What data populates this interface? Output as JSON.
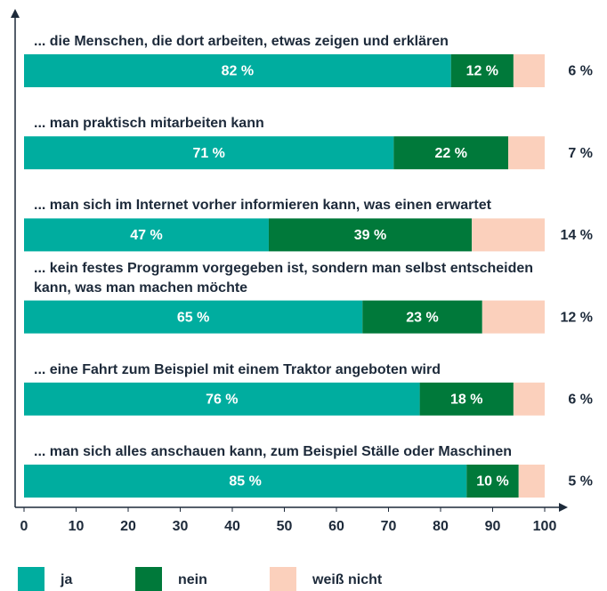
{
  "chart_data": {
    "type": "stacked_barh",
    "categories": [
      "... die Menschen, die dort arbeiten, etwas zeigen und erklären",
      "... man praktisch mitarbeiten kann",
      "... man sich im Internet vorher informieren kann, was einen erwartet",
      "... kein festes Programm vorgegeben ist, sondern man selbst entscheiden kann, was man machen möchte",
      "... eine Fahrt zum Beispiel mit einem Traktor angeboten wird",
      "... man sich alles anschauen kann, zum Beispiel Ställe oder Maschinen"
    ],
    "series": [
      {
        "name": "ja",
        "color": "#00ad9f",
        "values": [
          82,
          71,
          47,
          65,
          76,
          85
        ],
        "value_labels": [
          "82 %",
          "71 %",
          "47 %",
          "65 %",
          "76 %",
          "85 %"
        ]
      },
      {
        "name": "nein",
        "color": "#00793a",
        "values": [
          12,
          22,
          39,
          23,
          18,
          10
        ],
        "value_labels": [
          "12 %",
          "22 %",
          "39 %",
          "23 %",
          "18 %",
          "10 %"
        ]
      },
      {
        "name": "weiß nicht",
        "color": "#fbd0bc",
        "values": [
          6,
          7,
          14,
          12,
          6,
          5
        ],
        "value_labels": [
          "6 %",
          "7 %",
          "14 %",
          "12 %",
          "6 %",
          "5 %"
        ]
      }
    ],
    "xlim": [
      0,
      100
    ],
    "xticks": [
      0,
      10,
      20,
      30,
      40,
      50,
      60,
      70,
      80,
      90,
      100
    ]
  }
}
